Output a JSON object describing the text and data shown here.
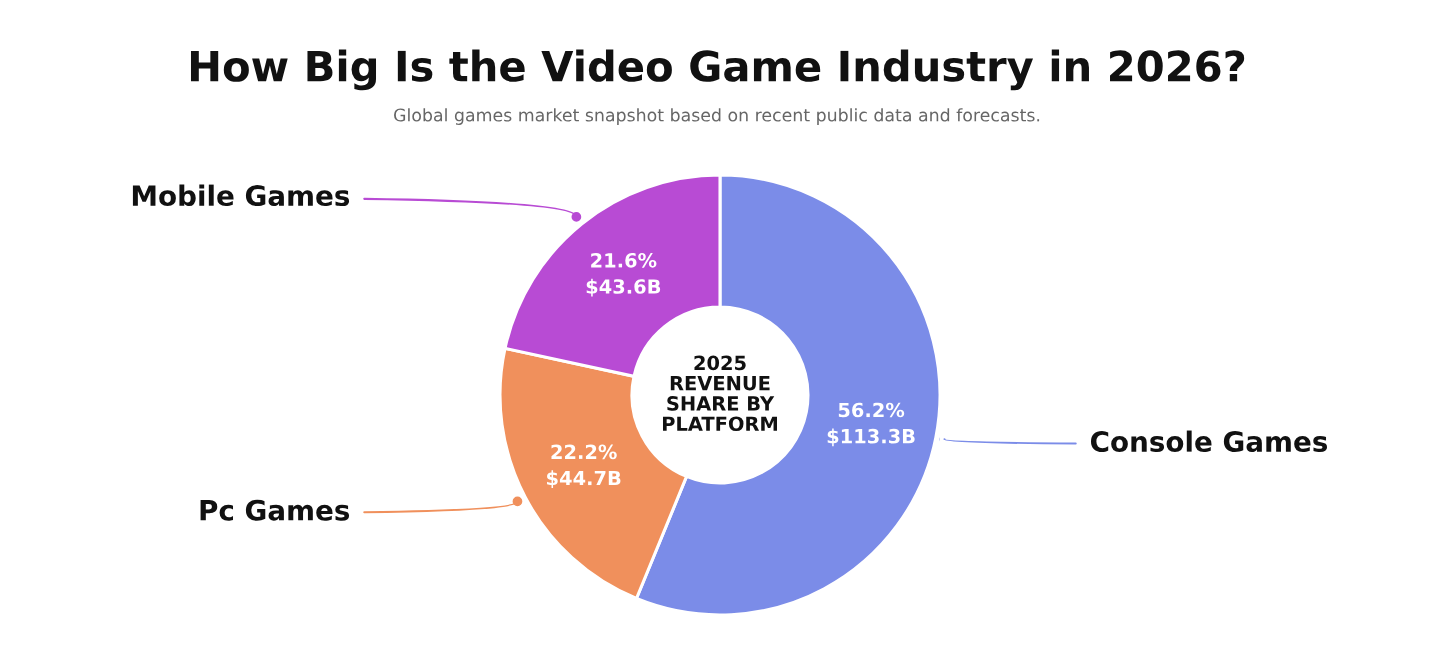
{
  "chart_data": {
    "type": "donut",
    "title": "How Big Is the Video Game Industry in 2026?",
    "subtitle": "Global games market snapshot based on recent public data and forecasts.",
    "categories": [
      "Console Games",
      "Pc Games",
      "Mobile Games"
    ],
    "values": [
      56.2,
      22.2,
      21.6
    ],
    "colors": [
      "#7b8ce8",
      "#f0905c",
      "#b84bd4"
    ],
    "value_labels": [
      "56.2%\n$113.3B",
      "22.2%\n$44.7B",
      "21.6%\n$43.6B"
    ],
    "annotations": [
      "2025\nREVENUE\nSHARE BY\nPLATFORM"
    ]
  }
}
